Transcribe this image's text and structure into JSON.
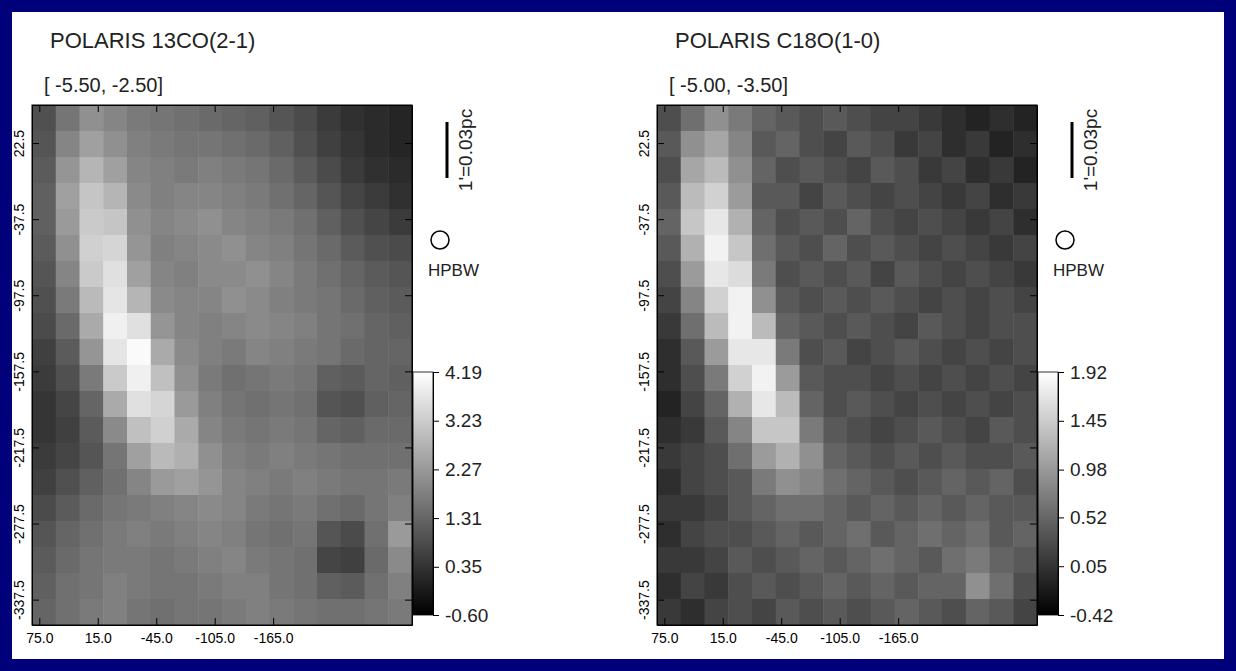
{
  "chart_data": [
    {
      "type": "heatmap",
      "title": "POLARIS 13CO(2-1)",
      "subtitle": "[ -5.50, -2.50]",
      "annotations": [
        "1'=0.03pc",
        "HPBW"
      ],
      "xlim": [
        82.5,
        -307.5
      ],
      "ylim": [
        -357.5,
        52.5
      ],
      "xticks": [
        {
          "value": 75,
          "label": "75.0"
        },
        {
          "value": 15,
          "label": "15.0"
        },
        {
          "value": -45,
          "label": "-45.0"
        },
        {
          "value": -105,
          "label": "-105.0"
        },
        {
          "value": -165,
          "label": "-165.0"
        }
      ],
      "yticks": [
        22.5,
        -37.5,
        -97.5,
        -157.5,
        -217.5,
        -277.5,
        -337.5
      ],
      "colorbar_lim": [
        -0.6,
        4.19
      ],
      "colorbar_ticks": [
        4.19,
        3.23,
        2.27,
        1.31,
        0.35,
        {
          "value": -0.6,
          "label": "-0.60"
        }
      ],
      "cells": [
        [
          0.9,
          1.6,
          2.1,
          1.9,
          1.7,
          1.6,
          1.5,
          1.4,
          1.3,
          1.2,
          1.0,
          0.8,
          0.5,
          0.3,
          0.2,
          0.1
        ],
        [
          1.0,
          1.9,
          2.4,
          2.1,
          1.8,
          1.7,
          1.6,
          1.6,
          1.5,
          1.4,
          1.2,
          0.9,
          0.6,
          0.4,
          0.2,
          0.1
        ],
        [
          1.1,
          2.2,
          2.8,
          2.4,
          1.9,
          1.8,
          1.7,
          1.8,
          1.7,
          1.6,
          1.4,
          1.1,
          0.8,
          0.5,
          0.3,
          0.2
        ],
        [
          1.2,
          2.4,
          3.1,
          2.8,
          2.0,
          1.8,
          1.9,
          1.9,
          1.8,
          1.7,
          1.5,
          1.3,
          1.0,
          0.7,
          0.5,
          0.3
        ],
        [
          1.2,
          2.3,
          3.2,
          3.1,
          2.1,
          1.9,
          2.0,
          2.1,
          1.9,
          1.8,
          1.7,
          1.5,
          1.2,
          0.9,
          0.7,
          0.5
        ],
        [
          1.1,
          2.1,
          3.3,
          3.4,
          2.2,
          1.8,
          1.9,
          2.0,
          2.1,
          1.9,
          1.8,
          1.6,
          1.4,
          1.1,
          0.9,
          0.8
        ],
        [
          1.0,
          1.9,
          3.2,
          3.6,
          2.4,
          1.9,
          1.8,
          2.0,
          2.0,
          2.1,
          1.9,
          1.7,
          1.5,
          1.3,
          1.1,
          1.0
        ],
        [
          0.9,
          1.7,
          2.9,
          3.7,
          2.8,
          2.0,
          1.9,
          1.9,
          2.1,
          2.0,
          1.8,
          1.7,
          1.6,
          1.4,
          1.2,
          1.1
        ],
        [
          0.8,
          1.4,
          2.6,
          3.9,
          3.6,
          2.2,
          1.9,
          1.8,
          1.9,
          2.0,
          1.9,
          1.8,
          1.6,
          1.5,
          1.3,
          1.2
        ],
        [
          0.6,
          1.1,
          2.2,
          3.7,
          4.1,
          2.6,
          2.0,
          1.8,
          1.7,
          1.9,
          1.8,
          1.7,
          1.6,
          1.4,
          1.3,
          1.3
        ],
        [
          0.5,
          0.9,
          1.7,
          3.2,
          3.9,
          3.0,
          2.1,
          1.7,
          1.5,
          1.6,
          1.7,
          1.6,
          1.2,
          1.1,
          1.3,
          1.2
        ],
        [
          0.4,
          0.7,
          1.3,
          2.6,
          3.6,
          3.4,
          2.3,
          1.8,
          1.6,
          1.5,
          1.6,
          1.5,
          1.0,
          0.9,
          1.2,
          1.3
        ],
        [
          0.4,
          0.6,
          1.1,
          2.0,
          3.0,
          3.3,
          2.6,
          1.9,
          1.7,
          1.6,
          1.7,
          1.6,
          1.3,
          1.2,
          1.4,
          1.4
        ],
        [
          0.5,
          0.7,
          1.0,
          1.6,
          2.4,
          2.9,
          2.7,
          2.1,
          1.8,
          1.7,
          1.8,
          1.7,
          1.6,
          1.5,
          1.5,
          1.5
        ],
        [
          0.6,
          0.9,
          1.2,
          1.5,
          1.9,
          2.3,
          2.4,
          2.2,
          1.9,
          1.8,
          1.7,
          1.8,
          1.7,
          1.6,
          1.6,
          1.7
        ],
        [
          0.8,
          1.1,
          1.4,
          1.6,
          1.7,
          1.8,
          1.9,
          2.0,
          1.9,
          1.7,
          1.6,
          1.7,
          1.5,
          1.4,
          1.6,
          1.8
        ],
        [
          1.0,
          1.3,
          1.5,
          1.7,
          1.8,
          1.7,
          1.8,
          1.9,
          1.8,
          1.6,
          1.5,
          1.6,
          1.0,
          0.8,
          1.5,
          2.3
        ],
        [
          1.1,
          1.4,
          1.6,
          1.7,
          1.7,
          1.6,
          1.7,
          1.8,
          1.9,
          1.7,
          1.6,
          1.5,
          0.7,
          0.6,
          1.4,
          2.0
        ],
        [
          1.2,
          1.5,
          1.6,
          1.8,
          1.7,
          1.6,
          1.6,
          1.7,
          1.8,
          1.8,
          1.6,
          1.5,
          1.2,
          1.1,
          1.5,
          1.8
        ],
        [
          1.3,
          1.5,
          1.7,
          1.8,
          1.6,
          1.5,
          1.6,
          1.6,
          1.7,
          1.8,
          1.7,
          1.6,
          1.5,
          1.5,
          1.6,
          1.7
        ]
      ]
    },
    {
      "type": "heatmap",
      "title": "POLARIS C18O(1-0)",
      "subtitle": "[ -5.00, -3.50]",
      "annotations": [
        "1'=0.03pc",
        "HPBW"
      ],
      "xlim": [
        82.5,
        -307.5
      ],
      "ylim": [
        -357.5,
        52.5
      ],
      "xticks": [
        {
          "value": 75,
          "label": "75.0"
        },
        {
          "value": 15,
          "label": "15.0"
        },
        {
          "value": -45,
          "label": "-45.0"
        },
        {
          "value": -105,
          "label": "-105.0"
        },
        {
          "value": -165,
          "label": "-165.0"
        }
      ],
      "yticks": [
        22.5,
        -37.5,
        -97.5,
        -157.5,
        -217.5,
        -277.5,
        -337.5
      ],
      "colorbar_lim": [
        -0.42,
        1.92
      ],
      "colorbar_ticks": [
        1.92,
        1.45,
        0.98,
        0.52,
        0.05,
        -0.42
      ],
      "cells": [
        [
          0.3,
          0.6,
          0.9,
          0.7,
          0.5,
          0.4,
          0.3,
          0.4,
          0.3,
          0.2,
          0.2,
          0.1,
          0.0,
          -0.1,
          0.0,
          -0.1
        ],
        [
          0.4,
          0.9,
          1.1,
          0.8,
          0.4,
          0.5,
          0.3,
          0.2,
          0.4,
          0.3,
          0.1,
          0.2,
          0.0,
          0.1,
          -0.1,
          0.0
        ],
        [
          0.3,
          1.1,
          1.3,
          0.9,
          0.5,
          0.3,
          0.4,
          0.3,
          0.2,
          0.4,
          0.3,
          0.1,
          0.2,
          0.0,
          0.1,
          -0.1
        ],
        [
          0.4,
          1.3,
          1.5,
          1.0,
          0.4,
          0.4,
          0.2,
          0.4,
          0.3,
          0.2,
          0.3,
          0.2,
          0.1,
          0.2,
          0.0,
          0.1
        ],
        [
          0.5,
          1.4,
          1.7,
          1.2,
          0.5,
          0.3,
          0.4,
          0.3,
          0.5,
          0.3,
          0.2,
          0.3,
          0.2,
          0.1,
          0.2,
          0.0
        ],
        [
          0.4,
          1.2,
          1.8,
          1.4,
          0.6,
          0.4,
          0.3,
          0.5,
          0.3,
          0.4,
          0.3,
          0.2,
          0.3,
          0.2,
          0.1,
          0.2
        ],
        [
          0.3,
          1.0,
          1.7,
          1.6,
          0.7,
          0.3,
          0.4,
          0.3,
          0.4,
          0.2,
          0.4,
          0.3,
          0.2,
          0.3,
          0.2,
          0.1
        ],
        [
          0.2,
          0.8,
          1.5,
          1.8,
          0.9,
          0.4,
          0.3,
          0.4,
          0.3,
          0.4,
          0.3,
          0.2,
          0.3,
          0.2,
          0.3,
          0.2
        ],
        [
          0.1,
          0.6,
          1.3,
          1.8,
          1.3,
          0.5,
          0.4,
          0.3,
          0.4,
          0.3,
          0.2,
          0.4,
          0.3,
          0.2,
          0.3,
          0.3
        ],
        [
          0.0,
          0.4,
          1.0,
          1.7,
          1.7,
          0.7,
          0.3,
          0.4,
          0.2,
          0.3,
          0.4,
          0.3,
          0.2,
          0.3,
          0.2,
          0.3
        ],
        [
          0.0,
          0.3,
          0.7,
          1.5,
          1.8,
          1.0,
          0.4,
          0.3,
          0.3,
          0.2,
          0.3,
          0.2,
          0.3,
          0.2,
          0.3,
          0.2
        ],
        [
          -0.1,
          0.2,
          0.5,
          1.2,
          1.7,
          1.3,
          0.5,
          0.3,
          0.4,
          0.3,
          0.2,
          0.3,
          0.2,
          0.3,
          0.2,
          0.3
        ],
        [
          0.0,
          0.1,
          0.4,
          0.8,
          1.4,
          1.4,
          0.7,
          0.4,
          0.3,
          0.2,
          0.3,
          0.4,
          0.3,
          0.2,
          0.4,
          0.3
        ],
        [
          0.1,
          0.2,
          0.3,
          0.6,
          1.0,
          1.2,
          0.9,
          0.5,
          0.4,
          0.3,
          0.4,
          0.3,
          0.4,
          0.3,
          0.3,
          0.4
        ],
        [
          0.0,
          0.2,
          0.3,
          0.4,
          0.7,
          0.9,
          0.8,
          0.6,
          0.5,
          0.4,
          0.3,
          0.4,
          0.5,
          0.4,
          0.5,
          0.3
        ],
        [
          0.1,
          0.1,
          0.2,
          0.4,
          0.5,
          0.6,
          0.6,
          0.5,
          0.4,
          0.5,
          0.4,
          0.5,
          0.4,
          0.5,
          0.4,
          0.4
        ],
        [
          0.0,
          0.2,
          0.3,
          0.3,
          0.4,
          0.5,
          0.4,
          0.5,
          0.6,
          0.4,
          0.5,
          0.6,
          0.5,
          0.6,
          0.4,
          0.5
        ],
        [
          0.1,
          0.1,
          0.2,
          0.4,
          0.3,
          0.4,
          0.5,
          0.4,
          0.5,
          0.6,
          0.5,
          0.4,
          0.6,
          0.7,
          0.5,
          0.4
        ],
        [
          0.0,
          0.2,
          0.1,
          0.3,
          0.4,
          0.3,
          0.4,
          0.5,
          0.4,
          0.5,
          0.4,
          0.5,
          0.5,
          0.9,
          0.6,
          0.3
        ],
        [
          0.1,
          0.0,
          0.2,
          0.3,
          0.2,
          0.4,
          0.3,
          0.4,
          0.3,
          0.4,
          0.5,
          0.4,
          0.3,
          0.5,
          0.4,
          0.2
        ]
      ]
    }
  ]
}
